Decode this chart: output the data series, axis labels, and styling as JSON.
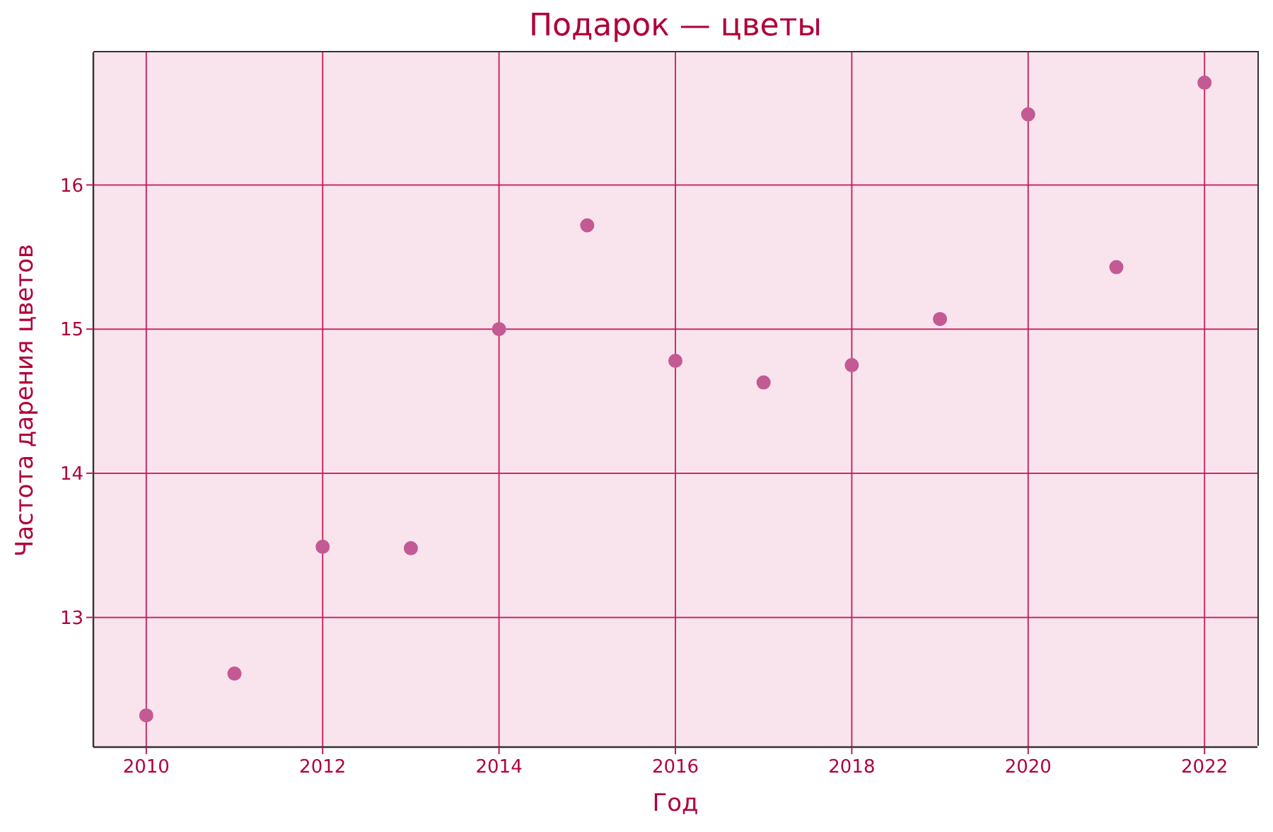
{
  "chart_data": {
    "type": "scatter",
    "title": "Подарок — цветы",
    "xlabel": "Год",
    "ylabel": "Частота дарения цветов",
    "x": [
      2010,
      2011,
      2012,
      2013,
      2014,
      2015,
      2016,
      2017,
      2018,
      2019,
      2020,
      2021,
      2022
    ],
    "values": [
      12.32,
      12.61,
      13.49,
      13.48,
      15.0,
      15.72,
      14.78,
      14.63,
      14.75,
      15.07,
      16.49,
      15.43,
      16.71
    ],
    "color": "#c45a93",
    "xlim": [
      2009.4,
      2022.6
    ],
    "ylim": [
      12.1,
      16.92
    ],
    "xticks": [
      2010,
      2012,
      2014,
      2016,
      2018,
      2020,
      2022
    ],
    "yticks": [
      13,
      14,
      15,
      16
    ],
    "grid": true,
    "marker": "circle"
  }
}
